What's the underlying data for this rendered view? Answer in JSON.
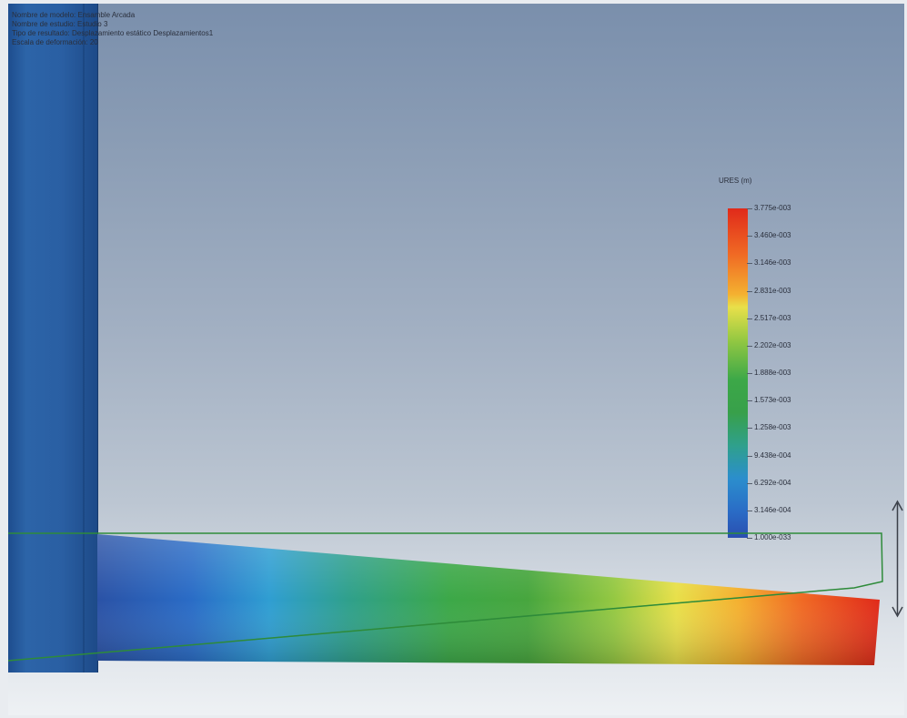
{
  "info": {
    "line1": "Nombre de modelo: Ensamble Arcada",
    "line2": "Nombre de estudio: Estudio 3",
    "line3": "Tipo de resultado: Desplazamiento estático Desplazamientos1",
    "line4": "Escala de deformación: 20"
  },
  "legend": {
    "title": "URES (m)",
    "values": [
      "3.775e-003",
      "3.460e-003",
      "3.146e-003",
      "2.831e-003",
      "2.517e-003",
      "2.202e-003",
      "1.888e-003",
      "1.573e-003",
      "1.258e-003",
      "9.438e-004",
      "6.292e-004",
      "3.146e-004",
      "1.000e-033"
    ],
    "colors": [
      "#e02a1a",
      "#f06a24",
      "#f4b030",
      "#e8e04a",
      "#94c842",
      "#3ca848",
      "#2fa08c",
      "#2b8ecd",
      "#2a4fb0"
    ]
  },
  "model": {
    "post_color": "#2a5fa3",
    "outline_color": "#2e8b3a"
  }
}
